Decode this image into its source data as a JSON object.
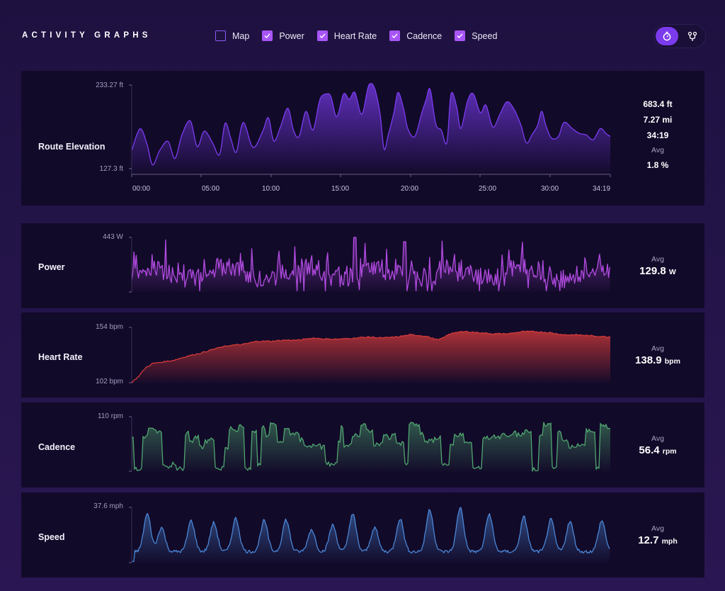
{
  "header": {
    "title": "ACTIVITY GRAPHS",
    "toggles": [
      {
        "label": "Map",
        "checked": false
      },
      {
        "label": "Power",
        "checked": true
      },
      {
        "label": "Heart Rate",
        "checked": true
      },
      {
        "label": "Cadence",
        "checked": true
      },
      {
        "label": "Speed",
        "checked": true
      }
    ],
    "view_switch": {
      "active": "stopwatch-icon",
      "inactive": "route-icon"
    }
  },
  "colors": {
    "elevation": "#7b3cf0",
    "power": "#b14be0",
    "heart_rate": "#d23a3a",
    "cadence": "#4fa56f",
    "speed": "#4a86d6"
  },
  "elevation": {
    "label": "Route Elevation",
    "y_max_label": "233.27 ft",
    "y_min_label": "127.3 ft",
    "x_ticks": [
      "00:00",
      "05:00",
      "10:00",
      "15:00",
      "20:00",
      "25:00",
      "30:00",
      "34:19"
    ],
    "stats": {
      "gain": "683.4 ft",
      "distance": "7.27 mi",
      "time": "34:19",
      "avg_label": "Avg",
      "grade": "1.8 %"
    }
  },
  "power": {
    "label": "Power",
    "y_max_label": "443 W",
    "avg_label": "Avg",
    "avg_value": "129.8",
    "avg_unit": "W"
  },
  "heart_rate": {
    "label": "Heart Rate",
    "y_max_label": "154 bpm",
    "y_min_label": "102 bpm",
    "avg_label": "Avg",
    "avg_value": "138.9",
    "avg_unit": "bpm"
  },
  "cadence": {
    "label": "Cadence",
    "y_max_label": "110 rpm",
    "avg_label": "Avg",
    "avg_value": "56.4",
    "avg_unit": "rpm"
  },
  "speed": {
    "label": "Speed",
    "y_max_label": "37.6 mph",
    "avg_label": "Avg",
    "avg_value": "12.7",
    "avg_unit": "mph"
  },
  "chart_data": [
    {
      "type": "area",
      "title": "Route Elevation",
      "xlabel": "",
      "ylabel": "",
      "ylim": [
        127.3,
        233.27
      ],
      "x": [
        0,
        0.6,
        1.1,
        1.5,
        2.0,
        2.6,
        3.1,
        3.6,
        4.2,
        4.7,
        5.2,
        5.8,
        6.3,
        6.7,
        7.1,
        7.5,
        8.0,
        8.7,
        9.4,
        9.8,
        10.2,
        10.7,
        11.2,
        11.6,
        12.0,
        12.5,
        13.0,
        13.5,
        14.0,
        14.3,
        14.7,
        15.2,
        15.6,
        16.0,
        16.5,
        17.0,
        17.4,
        17.8,
        18.1,
        18.4,
        18.8,
        19.1,
        19.5,
        19.8,
        20.3,
        20.8,
        21.1,
        21.4,
        21.8,
        22.2,
        22.6,
        22.9,
        23.3,
        23.6,
        24.1,
        24.5,
        25.0,
        25.4,
        25.9,
        26.4,
        26.9,
        27.4,
        27.9,
        28.3,
        28.7,
        29.1,
        29.4,
        29.7,
        30.1,
        30.6,
        31.0,
        31.6,
        32.1,
        32.6,
        33.1,
        33.6,
        34.0,
        34.32
      ],
      "y": [
        150,
        178,
        158,
        132,
        150,
        162,
        140,
        170,
        188,
        155,
        175,
        160,
        145,
        185,
        166,
        148,
        186,
        154,
        175,
        192,
        162,
        182,
        204,
        176,
        168,
        200,
        176,
        215,
        222,
        218,
        193,
        222,
        215,
        224,
        196,
        233,
        230,
        198,
        152,
        170,
        198,
        224,
        203,
        178,
        168,
        198,
        214,
        228,
        184,
        176,
        160,
        222,
        206,
        178,
        214,
        222,
        198,
        208,
        180,
        196,
        212,
        203,
        183,
        160,
        170,
        182,
        200,
        182,
        166,
        168,
        186,
        178,
        172,
        170,
        164,
        178,
        172,
        168
      ]
    },
    {
      "type": "line",
      "title": "Power",
      "xlabel": "",
      "ylabel": "",
      "ylim": [
        0,
        443
      ],
      "x": [
        0,
        34.32
      ],
      "y_description": "high-variance power trace, peak 443 W"
    },
    {
      "type": "area",
      "title": "Heart Rate",
      "xlabel": "",
      "ylabel": "",
      "ylim": [
        102,
        154
      ],
      "x": [
        0,
        0.5,
        1,
        1.5,
        2,
        3,
        4,
        5,
        6,
        7,
        8,
        9,
        10,
        11,
        12,
        13,
        14,
        15,
        16,
        17,
        18,
        19,
        20,
        21,
        22,
        23,
        24,
        25,
        26,
        27,
        28,
        29,
        30,
        31,
        32,
        33,
        34.32
      ],
      "y": [
        102,
        108,
        116,
        120,
        121,
        123,
        127,
        130,
        134,
        137,
        138,
        141,
        141,
        142,
        142,
        144,
        143,
        143,
        144,
        145,
        144,
        145,
        147,
        146,
        142,
        149,
        150,
        149,
        148,
        148,
        150,
        150,
        149,
        147,
        147,
        146,
        145
      ]
    },
    {
      "type": "line",
      "title": "Cadence",
      "xlabel": "",
      "ylabel": "",
      "ylim": [
        0,
        110
      ],
      "x": [
        0,
        34.32
      ],
      "y_description": "cadence trace, range 0-110 rpm"
    },
    {
      "type": "area",
      "title": "Speed",
      "xlabel": "",
      "ylabel": "",
      "ylim": [
        0,
        37.6
      ],
      "x": [
        0,
        34.32
      ],
      "y_description": "speed trace with periodic peaks up to 37.6 mph"
    }
  ]
}
